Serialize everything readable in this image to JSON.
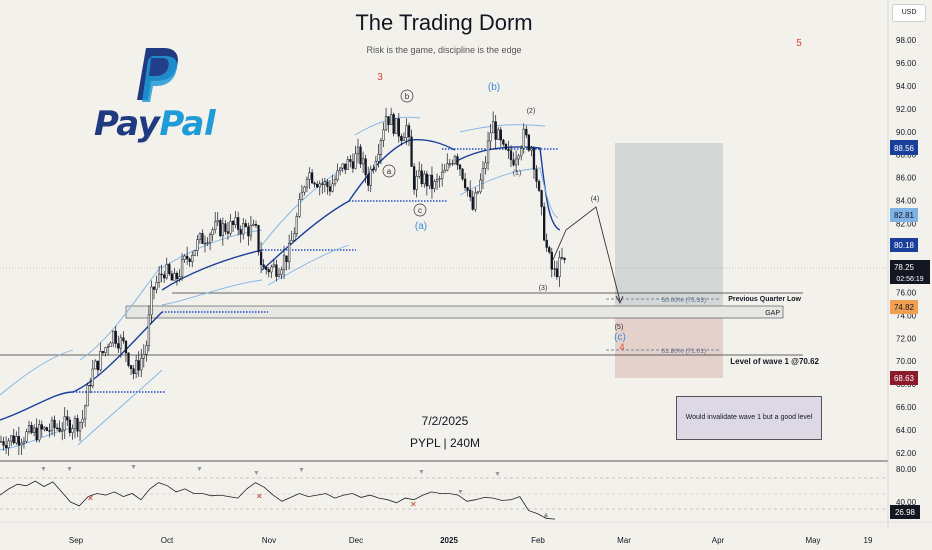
{
  "header": {
    "title": "The Trading Dorm",
    "subtitle": "Risk is the game, discipline is the edge",
    "logo_text_1": "Pay",
    "logo_text_2": "Pal",
    "date": "7/2/2025",
    "ticker_label": "PYPL | 240M",
    "currency": "USD"
  },
  "colors": {
    "background": "#f2f1ec",
    "candle": "#131722",
    "vwap_line": "#1a3f9a",
    "band_line": "#7fb3e6",
    "dotted_level": "#1f4ec9",
    "zone_upper": "#c5cbcc",
    "zone_lower": "#e2cbc6",
    "paypal_dark": "#1f3a80",
    "paypal_light": "#1f9bd8",
    "wave_red": "#e0452c",
    "wave_blue": "#3f8ad6"
  },
  "chart_data": [
    {
      "type": "candlestick",
      "title": "PYPL | 240M",
      "currency": "USD",
      "x_ticks": [
        "Sep",
        "Oct",
        "Nov",
        "Dec",
        "2025",
        "Feb",
        "Mar",
        "Apr",
        "May",
        "19"
      ],
      "y_ticks": [
        98.0,
        96.0,
        94.0,
        92.0,
        90.0,
        88.0,
        86.0,
        84.0,
        82.0,
        80.0,
        78.0,
        76.0,
        74.0,
        72.0,
        70.0,
        68.0,
        66.0,
        64.0,
        62.0
      ],
      "y_tick_labels": [
        "98.00",
        "96.00",
        "94.00",
        "92.00",
        "90.00",
        "88.00",
        "86.00",
        "84.00",
        "82.00",
        "80.00",
        "78.00",
        "76.00",
        "74.00",
        "72.00",
        "70.00",
        "68.00",
        "66.00",
        "64.00",
        "62.00"
      ],
      "ylim": [
        61.2,
        99.4
      ],
      "grid": false,
      "approx_close_path": [
        {
          "x": "Aug 28",
          "y": 63.0
        },
        {
          "x": "Sep 3",
          "y": 64.8
        },
        {
          "x": "Sep 6",
          "y": 68.8
        },
        {
          "x": "Sep 10",
          "y": 70.8
        },
        {
          "x": "Sep 13",
          "y": 72.5
        },
        {
          "x": "Sep 17",
          "y": 71.3
        },
        {
          "x": "Sep 20",
          "y": 69.0
        },
        {
          "x": "Sep 24",
          "y": 71.0
        },
        {
          "x": "Sep 26",
          "y": 76.0
        },
        {
          "x": "Sep 30",
          "y": 78.0
        },
        {
          "x": "Oct 3",
          "y": 76.8
        },
        {
          "x": "Oct 7",
          "y": 79.0
        },
        {
          "x": "Oct 11",
          "y": 80.5
        },
        {
          "x": "Oct 15",
          "y": 81.5
        },
        {
          "x": "Oct 22",
          "y": 81.8
        },
        {
          "x": "Oct 28",
          "y": 81.3
        },
        {
          "x": "Oct 30",
          "y": 78.0
        },
        {
          "x": "Nov 4",
          "y": 78.2
        },
        {
          "x": "Nov 8",
          "y": 79.5
        },
        {
          "x": "Nov 12",
          "y": 84.0
        },
        {
          "x": "Nov 14",
          "y": 86.6
        },
        {
          "x": "Nov 19",
          "y": 85.5
        },
        {
          "x": "Nov 22",
          "y": 85.2
        },
        {
          "x": "Nov 27",
          "y": 87.0
        },
        {
          "x": "Dec 2",
          "y": 88.0
        },
        {
          "x": "Dec 5",
          "y": 85.8
        },
        {
          "x": "Dec 9",
          "y": 89.3
        },
        {
          "x": "Dec 11",
          "y": 91.5
        },
        {
          "x": "Dec 16",
          "y": 89.8
        },
        {
          "x": "Dec 18",
          "y": 90.5
        },
        {
          "x": "Dec 20",
          "y": 85.5
        },
        {
          "x": "Dec 23",
          "y": 86.0
        },
        {
          "x": "Dec 27",
          "y": 85.2
        },
        {
          "x": "Dec 31",
          "y": 86.5
        },
        {
          "x": "Jan 3",
          "y": 88.3
        },
        {
          "x": "Jan 7",
          "y": 85.5
        },
        {
          "x": "Jan 9",
          "y": 83.0
        },
        {
          "x": "Jan 13",
          "y": 86.5
        },
        {
          "x": "Jan 16",
          "y": 90.8
        },
        {
          "x": "Jan 20",
          "y": 88.2
        },
        {
          "x": "Jan 23",
          "y": 87.5
        },
        {
          "x": "Jan 27",
          "y": 89.6
        },
        {
          "x": "Jan 30",
          "y": 88.6
        },
        {
          "x": "Feb 2",
          "y": 83.0
        },
        {
          "x": "Feb 4",
          "y": 79.5
        },
        {
          "x": "Feb 6",
          "y": 77.5
        },
        {
          "x": "Feb 9",
          "y": 78.8
        },
        {
          "x": "Feb 10",
          "y": 78.25
        }
      ],
      "price_labels": [
        {
          "label": "88.56",
          "value": 88.56,
          "color": "#1a3f9a"
        },
        {
          "label": "82.81",
          "value": 82.81,
          "color": "#7fb3e6"
        },
        {
          "label": "80.18",
          "value": 80.18,
          "color": "#1a3f9a"
        },
        {
          "label": "78.25",
          "value": 78.25,
          "color": "#131722"
        },
        {
          "label": "74.82",
          "value": 74.82,
          "color": "#f0a050"
        },
        {
          "label": "68.63",
          "value": 68.63,
          "color": "#8b1a2a"
        }
      ],
      "countdown": "02:56:19",
      "levels": [
        {
          "label": "Previous Quarter Low",
          "value": 75.8
        },
        {
          "label": "GAP",
          "value_top": 75.1,
          "value_bottom": 73.9
        },
        {
          "label": "Level of wave 1 @70.62",
          "value": 70.62
        },
        {
          "label": "50.00% (75.33)",
          "value": 75.33
        },
        {
          "label": "61.80% (71.01)",
          "value": 71.01
        }
      ],
      "wave_labels": [
        "3",
        "5",
        "(b)",
        "b",
        "a",
        "c",
        "(a)",
        "(2)",
        "(1)",
        "(3)",
        "(4)",
        "(5)",
        "(c)",
        "4"
      ],
      "projection": [
        {
          "x": "Feb 10",
          "y": 78.6
        },
        {
          "x": "Feb 13",
          "y": 82.0
        },
        {
          "x": "Feb 20",
          "y": 83.8
        },
        {
          "x": "Feb 27",
          "y": 75.3
        }
      ],
      "annotation": "Would invalidate wave 1 but a good level"
    },
    {
      "type": "line",
      "title": "RSI",
      "y_ticks": [
        80.0,
        40.0
      ],
      "y_tick_labels": [
        "80.00",
        "40.00"
      ],
      "ylim": [
        25,
        88
      ],
      "last_value": 26.98,
      "last_label": "26.98",
      "series": [
        {
          "values": [
            58,
            66,
            72,
            70,
            76,
            69,
            75,
            62,
            49,
            44,
            56,
            60,
            58,
            62,
            56,
            60,
            52,
            66,
            74,
            70,
            62,
            66,
            60,
            60,
            57,
            58,
            56,
            54,
            66,
            74,
            68,
            58,
            50,
            55,
            60,
            56,
            58,
            60,
            54,
            58,
            60,
            55,
            58,
            54,
            52,
            48,
            54,
            52,
            58,
            62,
            60,
            60,
            58,
            50,
            52,
            55,
            54,
            51,
            52,
            56,
            38,
            34,
            28,
            27
          ]
        }
      ]
    }
  ]
}
